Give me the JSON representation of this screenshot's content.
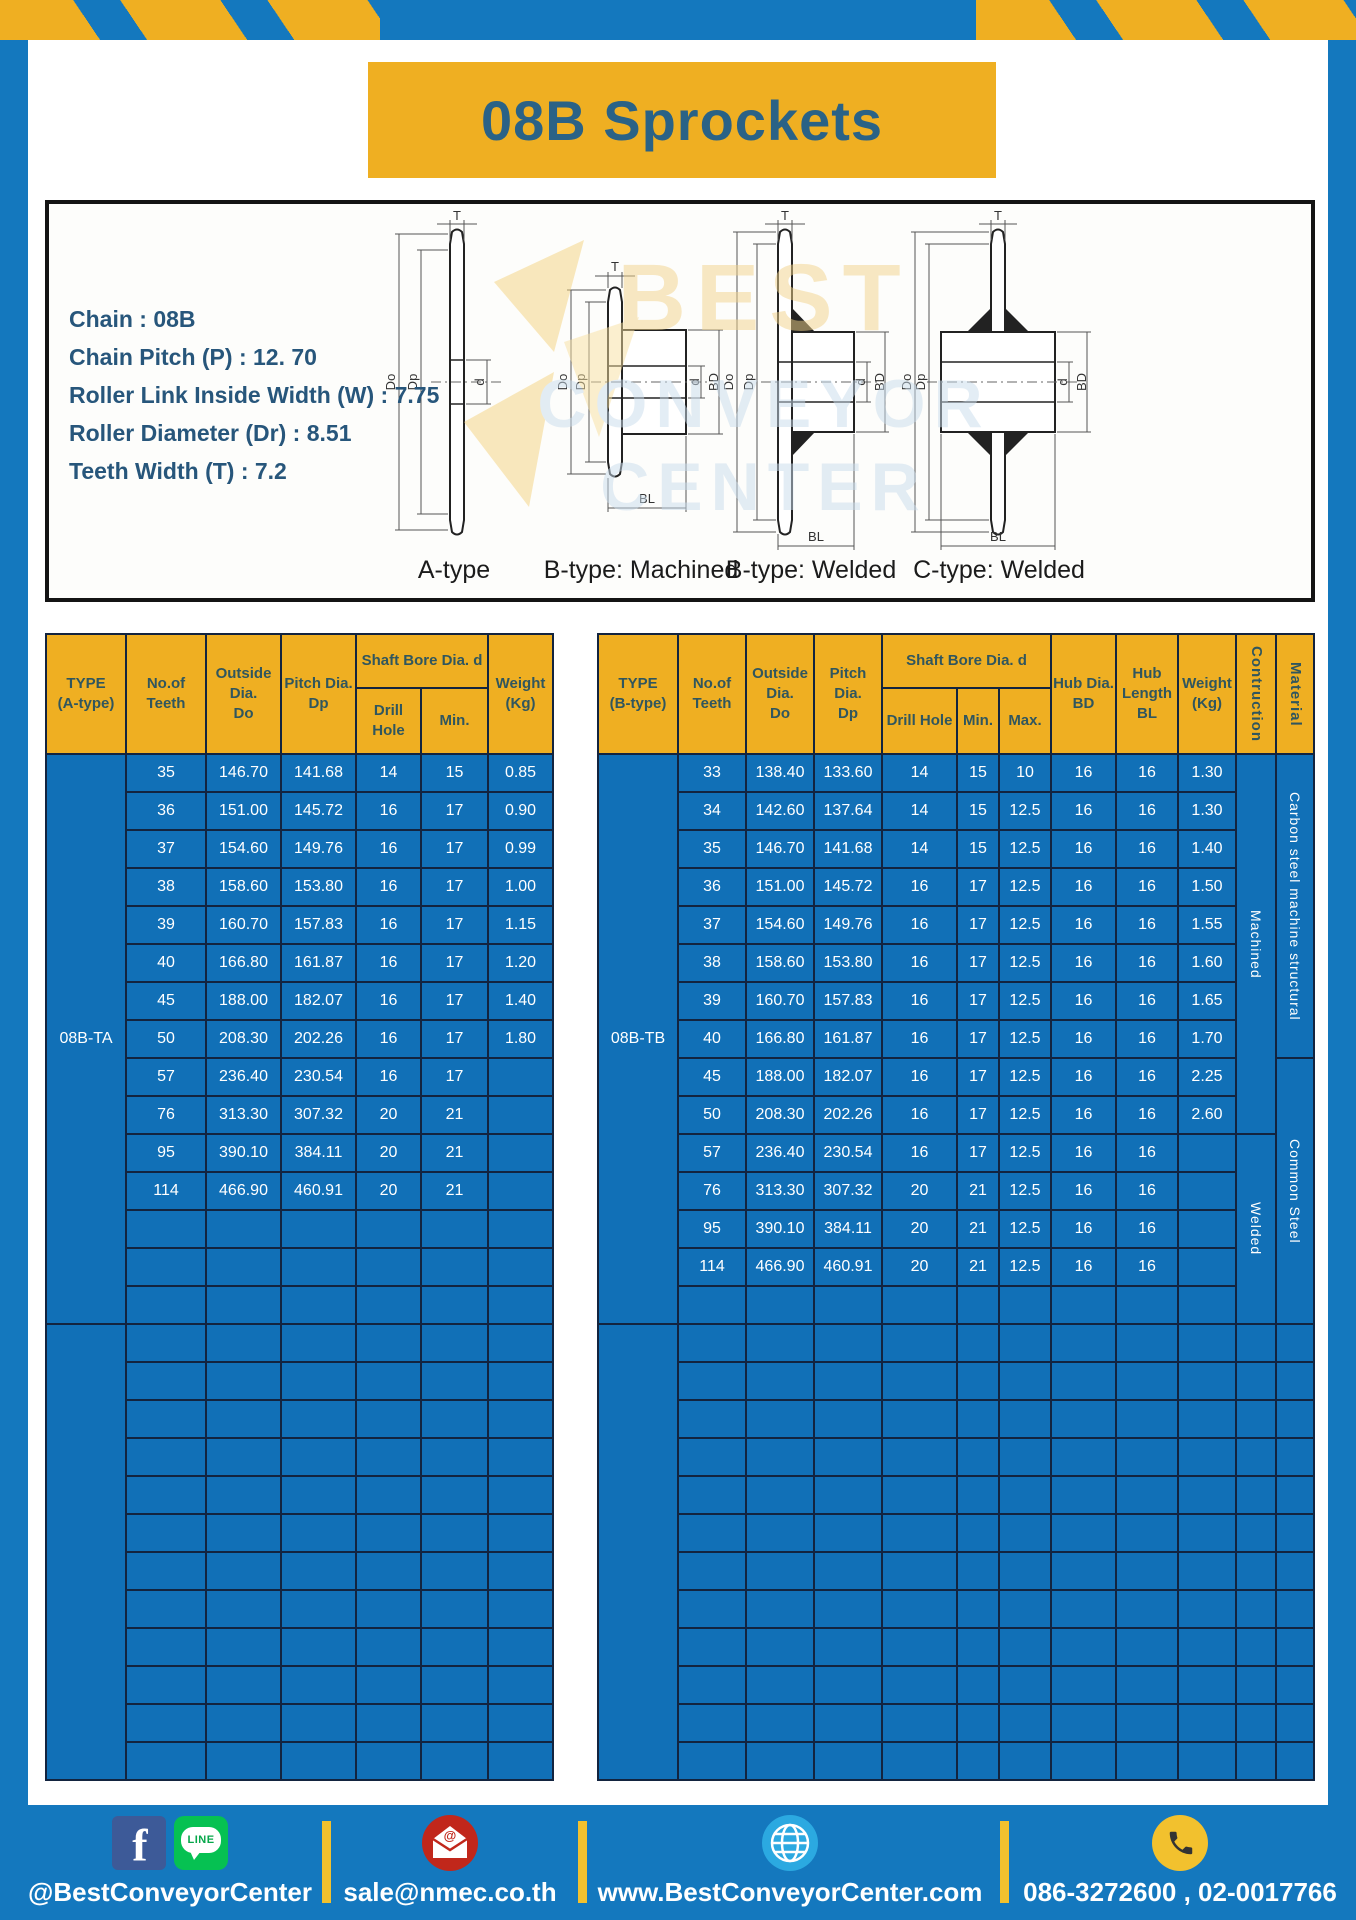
{
  "title": "08B Sprockets",
  "specs": [
    "Chain  : 08B",
    "Chain Pitch (P)  :  12. 70",
    "Roller Link Inside Width (W)  :  7.75",
    "Roller Diameter (Dr)  : 8.51",
    "Teeth Width (T)  :  7.2"
  ],
  "diagrams": {
    "labels": [
      "A-type",
      "B-type: Machined",
      "B-type: Welded",
      "C-type: Welded"
    ],
    "dims": {
      "t": "T",
      "outside": "Do",
      "pitch": "Dp",
      "bore": "d",
      "hub_dia": "BD",
      "hub_len": "BL"
    }
  },
  "watermark": {
    "line1": "BEST",
    "line2": "CONVEYOR",
    "line3": "CENTER"
  },
  "table_a": {
    "headers": {
      "type": "TYPE\n(A-type)",
      "teeth": "No.of\nTeeth",
      "outside": "Outside\nDia.\nDo",
      "pitch": "Pitch Dia.\nDp",
      "shaft_bore": "Shaft Bore Dia. d",
      "drill": "Drill Hole",
      "min": "Min.",
      "weight": "Weight\n(Kg)"
    },
    "type_value": "08B-TA",
    "rows": [
      [
        "35",
        "146.70",
        "141.68",
        "14",
        "15",
        "0.85"
      ],
      [
        "36",
        "151.00",
        "145.72",
        "16",
        "17",
        "0.90"
      ],
      [
        "37",
        "154.60",
        "149.76",
        "16",
        "17",
        "0.99"
      ],
      [
        "38",
        "158.60",
        "153.80",
        "16",
        "17",
        "1.00"
      ],
      [
        "39",
        "160.70",
        "157.83",
        "16",
        "17",
        "1.15"
      ],
      [
        "40",
        "166.80",
        "161.87",
        "16",
        "17",
        "1.20"
      ],
      [
        "45",
        "188.00",
        "182.07",
        "16",
        "17",
        "1.40"
      ],
      [
        "50",
        "208.30",
        "202.26",
        "16",
        "17",
        "1.80"
      ],
      [
        "57",
        "236.40",
        "230.54",
        "16",
        "17",
        ""
      ],
      [
        "76",
        "313.30",
        "307.32",
        "20",
        "21",
        ""
      ],
      [
        "95",
        "390.10",
        "384.11",
        "20",
        "21",
        ""
      ],
      [
        "114",
        "466.90",
        "460.91",
        "20",
        "21",
        ""
      ]
    ]
  },
  "table_b": {
    "headers": {
      "type": "TYPE\n(B-type)",
      "teeth": "No.of\nTeeth",
      "outside": "Outside\nDia.\nDo",
      "pitch": "Pitch Dia.\nDp",
      "shaft_bore": "Shaft Bore Dia. d",
      "drill": "Drill Hole",
      "min": "Min.",
      "max": "Max.",
      "hub_dia": "Hub Dia.\nBD",
      "hub_len": "Hub\nLength\nBL",
      "weight": "Weight\n(Kg)",
      "construction": "Contruction",
      "material": "Material"
    },
    "type_value": "08B-TB",
    "rows": [
      [
        "33",
        "138.40",
        "133.60",
        "14",
        "15",
        "10",
        "16",
        "16",
        "1.30"
      ],
      [
        "34",
        "142.60",
        "137.64",
        "14",
        "15",
        "12.5",
        "16",
        "16",
        "1.30"
      ],
      [
        "35",
        "146.70",
        "141.68",
        "14",
        "15",
        "12.5",
        "16",
        "16",
        "1.40"
      ],
      [
        "36",
        "151.00",
        "145.72",
        "16",
        "17",
        "12.5",
        "16",
        "16",
        "1.50"
      ],
      [
        "37",
        "154.60",
        "149.76",
        "16",
        "17",
        "12.5",
        "16",
        "16",
        "1.55"
      ],
      [
        "38",
        "158.60",
        "153.80",
        "16",
        "17",
        "12.5",
        "16",
        "16",
        "1.60"
      ],
      [
        "39",
        "160.70",
        "157.83",
        "16",
        "17",
        "12.5",
        "16",
        "16",
        "1.65"
      ],
      [
        "40",
        "166.80",
        "161.87",
        "16",
        "17",
        "12.5",
        "16",
        "16",
        "1.70"
      ],
      [
        "45",
        "188.00",
        "182.07",
        "16",
        "17",
        "12.5",
        "16",
        "16",
        "2.25"
      ],
      [
        "50",
        "208.30",
        "202.26",
        "16",
        "17",
        "12.5",
        "16",
        "16",
        "2.60"
      ],
      [
        "57",
        "236.40",
        "230.54",
        "16",
        "17",
        "12.5",
        "16",
        "16",
        ""
      ],
      [
        "76",
        "313.30",
        "307.32",
        "20",
        "21",
        "12.5",
        "16",
        "16",
        ""
      ],
      [
        "95",
        "390.10",
        "384.11",
        "20",
        "21",
        "12.5",
        "16",
        "16",
        ""
      ],
      [
        "114",
        "466.90",
        "460.91",
        "20",
        "21",
        "12.5",
        "16",
        "16",
        ""
      ]
    ],
    "construction_machined": "Machined",
    "construction_welded": "Welded",
    "material_carbon": "Carbon steel  machine structural",
    "material_common": "Common Steel"
  },
  "footer": {
    "fb_letter": "f",
    "line_label": "LINE",
    "social": "@BestConveyorCenter",
    "email": "sale@nmec.co.th",
    "website": "www.BestConveyorCenter.com",
    "phone": "086-3272600 , 02-0017766"
  },
  "colors": {
    "frame_blue": "#1478BE",
    "cell_blue": "#1170B7",
    "header_yellow": "#EFAF22",
    "grid_navy": "#13243F",
    "text_navy": "#2A6286",
    "spec_navy": "#27567B",
    "cell_text": "#FFFFFF",
    "line_green": "#06C152",
    "facebook_blue": "#3D5A98",
    "mail_red": "#C1271B",
    "globe_blue": "#2BA9E1",
    "phone_yellow": "#F2C12E"
  }
}
